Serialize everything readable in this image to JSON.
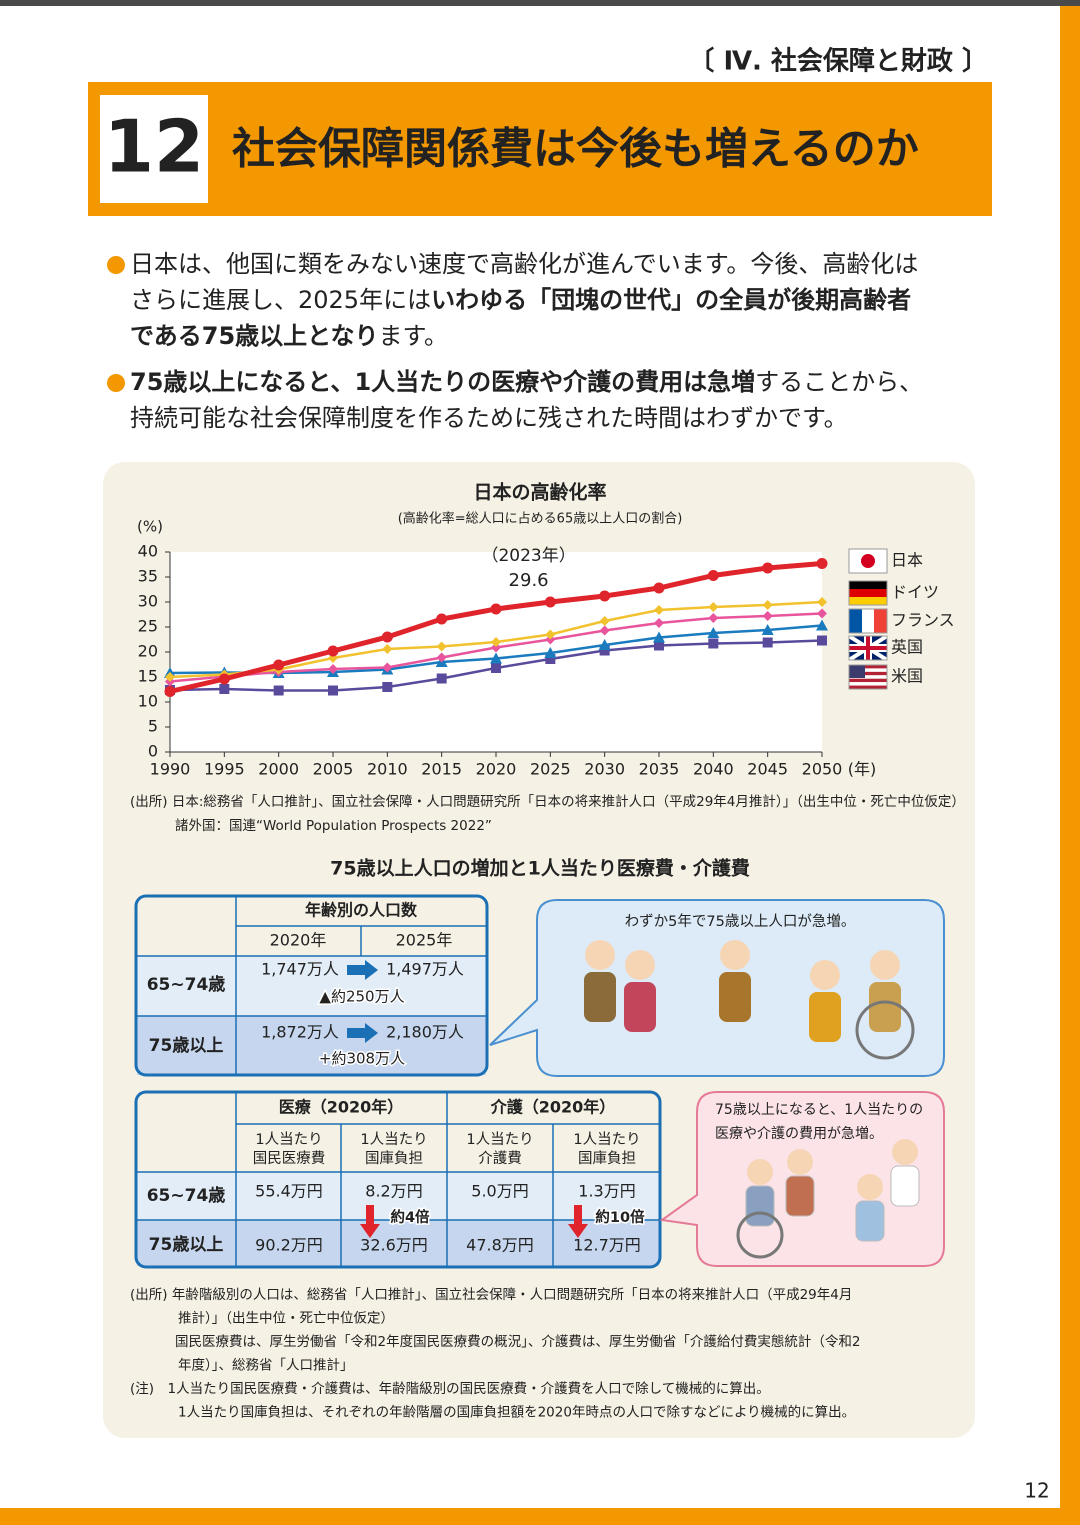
{
  "header": {
    "section": "〔 Ⅳ. 社会保障と財政 〕",
    "number": "12",
    "title": "社会保障関係費は今後も増えるのか"
  },
  "bullets": [
    [
      [
        "日本は、他国に類をみない速度で高齢化が進んでいます。今後、高齢化は"
      ],
      [
        "さらに進展し、2025年には",
        "いわゆる「団塊の世代」の全員が後期高齢者"
      ],
      [
        "である75歳以上となり",
        "ます。"
      ]
    ],
    [
      [
        "75歳以上になると、1人当たりの医療や介護の費用は急増",
        "することから、"
      ],
      [
        "持続可能な社会保障制度を作るために残された時間はわずかです。"
      ]
    ]
  ],
  "chart_data": {
    "type": "line",
    "title": "日本の高齢化率",
    "subtitle": "(高齢化率=総人口に占める65歳以上人口の割合)",
    "ylabel": "(%)",
    "xlabel": "(年)",
    "x": [
      1990,
      1995,
      2000,
      2005,
      2010,
      2015,
      2020,
      2025,
      2030,
      2035,
      2040,
      2045,
      2050
    ],
    "xlim": [
      1990,
      2050
    ],
    "xticks": [
      1990,
      1995,
      2000,
      2005,
      2010,
      2015,
      2020,
      2025,
      2030,
      2035,
      2040,
      2045,
      2050
    ],
    "ylim": [
      0,
      40
    ],
    "yticks": [
      0,
      5,
      10,
      15,
      20,
      25,
      30,
      35,
      40
    ],
    "series": [
      {
        "name": "日本",
        "color": "#e0242b",
        "marker": "circle",
        "values": [
          12.1,
          14.6,
          17.4,
          20.2,
          23.0,
          26.6,
          28.6,
          30.0,
          31.2,
          32.8,
          35.3,
          36.8,
          37.7
        ]
      },
      {
        "name": "ドイツ",
        "color": "#f2c12e",
        "marker": "diamond",
        "values": [
          15.0,
          15.5,
          16.5,
          18.8,
          20.6,
          21.1,
          22.0,
          23.5,
          26.2,
          28.4,
          29.0,
          29.4,
          30.0
        ]
      },
      {
        "name": "フランス",
        "color": "#e8559c",
        "marker": "diamond",
        "values": [
          14.1,
          15.1,
          16.0,
          16.6,
          16.9,
          18.9,
          20.9,
          22.5,
          24.3,
          25.8,
          26.8,
          27.2,
          27.7
        ]
      },
      {
        "name": "英国",
        "color": "#1a7bbf",
        "marker": "triangle",
        "values": [
          15.8,
          15.9,
          15.8,
          16.0,
          16.5,
          18.0,
          18.7,
          19.8,
          21.4,
          22.9,
          23.8,
          24.4,
          25.3
        ]
      },
      {
        "name": "米国",
        "color": "#5a4a9c",
        "marker": "square",
        "values": [
          12.4,
          12.6,
          12.3,
          12.3,
          13.0,
          14.7,
          16.8,
          18.6,
          20.3,
          21.3,
          21.7,
          21.9,
          22.3
        ]
      }
    ],
    "annotation": {
      "x": 2023,
      "label": "（2023年）",
      "value": 29.6
    }
  },
  "chart_source": [
    "(出所) 日本:総務省「人口推計」、国立社会保障・人口問題研究所「日本の将来推計人口（平成29年4月推計）」（出生中位・死亡中位仮定）",
    "諸外国：国連“World Population Prospects 2022”"
  ],
  "table_title": "75歳以上人口の増加と1人当たり医療費・介護費",
  "population_table": {
    "title": "年齢別の人口数",
    "columns": [
      "2020年",
      "2025年"
    ],
    "rows": [
      {
        "label": "65~74歳",
        "values": [
          "1,747万人",
          "1,497万人"
        ],
        "change": "▲約250万人"
      },
      {
        "label": "75歳以上",
        "values": [
          "1,872万人",
          "2,180万人"
        ],
        "change": "+約308万人"
      }
    ]
  },
  "cost_table": {
    "groups": [
      "医療（2020年）",
      "介護（2020年）"
    ],
    "columns": [
      [
        "1人当たり",
        "国民医療費"
      ],
      [
        "1人当たり",
        "国庫負担"
      ],
      [
        "1人当たり",
        "介護費"
      ],
      [
        "1人当たり",
        "国庫負担"
      ]
    ],
    "rows": [
      {
        "label": "65~74歳",
        "values": [
          "55.4万円",
          "8.2万円",
          "5.0万円",
          "1.3万円"
        ]
      },
      {
        "label": "75歳以上",
        "values": [
          "90.2万円",
          "32.6万円",
          "47.8万円",
          "12.7万円"
        ]
      }
    ],
    "ratios": [
      "約4倍",
      "約10倍"
    ]
  },
  "callouts": [
    [
      "わずか5年で75歳以上人口が急増。"
    ],
    [
      "75歳以上になると、1人当たりの",
      "医療や介護の費用が急増。"
    ]
  ],
  "notes": [
    "(出所) 年齢階級別の人口は、総務省「人口推計」、国立社会保障・人口問題研究所「日本の将来推計人口（平成29年4月",
    "推計）」（出生中位・死亡中位仮定）",
    "国民医療費は、厚生労働省「令和2年度国民医療費の概況」、介護費は、厚生労働省「介護給付費実態統計（令和2",
    "年度）」、総務省「人口推計」",
    "(注)　1人当たり国民医療費・介護費は、年齢階級別の国民医療費・介護費を人口で除して機械的に算出。",
    "1人当たり国庫負担は、それぞれの年齢階層の国庫負担額を2020年時点の人口で除すなどにより機械的に算出。"
  ],
  "page_number": "12"
}
